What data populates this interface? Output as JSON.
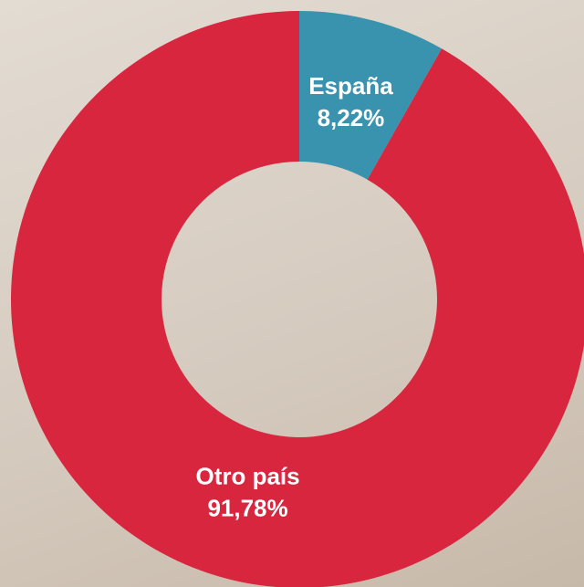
{
  "chart_data": {
    "type": "donut",
    "categories": [
      "España",
      "Otro país"
    ],
    "values": [
      8.22,
      91.78
    ],
    "value_labels": [
      "8,22%",
      "91,78%"
    ],
    "colors": [
      "#3a93ae",
      "#d9263f"
    ]
  }
}
